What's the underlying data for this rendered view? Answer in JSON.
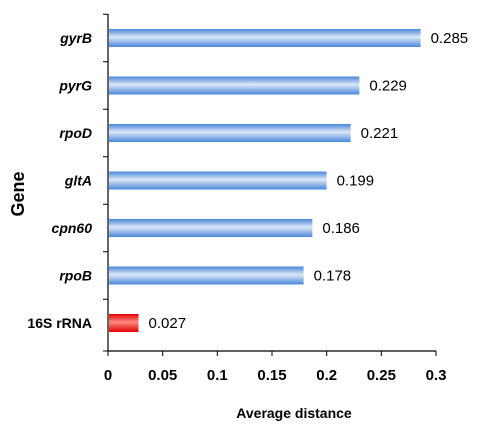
{
  "chart_data": {
    "type": "bar",
    "orientation": "horizontal",
    "categories": [
      "gyrB",
      "pyrG",
      "rpoD",
      "gltA",
      "cpn60",
      "rpoB",
      "16S rRNA"
    ],
    "values": [
      0.285,
      0.229,
      0.221,
      0.199,
      0.186,
      0.178,
      0.027
    ],
    "value_labels": [
      "0.285",
      "0.229",
      "0.221",
      "0.199",
      "0.186",
      "0.178",
      "0.027"
    ],
    "italic_categories": [
      "gyrB",
      "pyrG",
      "rpoD",
      "gltA",
      "cpn60",
      "rpoB"
    ],
    "highlight_category": "16S rRNA",
    "xlabel": "Average distance",
    "ylabel": "Gene",
    "xlim": [
      0,
      0.3
    ],
    "xticks": [
      0,
      0.05,
      0.1,
      0.15,
      0.2,
      0.25,
      0.3
    ],
    "xtick_labels": [
      "0",
      "0.05",
      "0.1",
      "0.15",
      "0.2",
      "0.25",
      "0.3"
    ],
    "grid": false,
    "legend": "none",
    "colors": {
      "bar_main": "#4a86d8",
      "bar_main_light": "#dbe8f8",
      "bar_highlight": "#e00000",
      "bar_highlight_light": "#ff8a80",
      "axis": "#000000",
      "text": "#000000"
    }
  }
}
